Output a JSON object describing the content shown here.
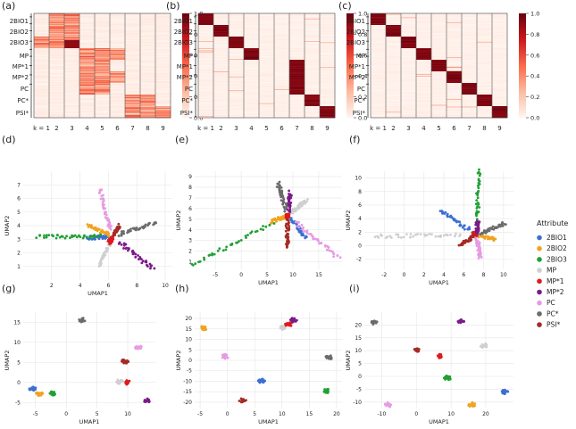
{
  "chart_data": {
    "heatmaps": [
      {
        "panel_label": "(a)",
        "type": "heatmap",
        "rows": [
          "2BIO1",
          "2BIO2",
          "2BIO3",
          "MP",
          "MP*1",
          "MP*2",
          "PC",
          "PC*",
          "PSI*"
        ],
        "cols": [
          "k = 1",
          "2",
          "3",
          "4",
          "5",
          "6",
          "7",
          "8",
          "9"
        ],
        "colorbar_ticks": [
          "0.0",
          "0.2",
          "0.4",
          "0.6",
          "0.8",
          "1.0"
        ],
        "mode": "soft"
      },
      {
        "panel_label": "(b)",
        "type": "heatmap",
        "rows": [
          "2BIO1",
          "2BIO2",
          "2BIO3",
          "MP",
          "MP*1",
          "MP*2",
          "PC",
          "PC*",
          "PSI*"
        ],
        "cols": [
          "k = 1",
          "2",
          "3",
          "4",
          "5",
          "6",
          "7",
          "8",
          "9"
        ],
        "colorbar_ticks": [
          "0.0",
          "0.2",
          "0.4",
          "0.6",
          "0.8",
          "1.0"
        ],
        "mode": "hard",
        "col_map": [
          0,
          1,
          2,
          3,
          6,
          6,
          6,
          7,
          8
        ]
      },
      {
        "panel_label": "(c)",
        "type": "heatmap",
        "rows": [
          "2BIO1",
          "2BIO2",
          "2BIO3",
          "MP",
          "MP*1",
          "MP*2",
          "PC",
          "PC*",
          "PSI*"
        ],
        "cols": [
          "k = 1",
          "2",
          "3",
          "4",
          "5",
          "6",
          "7",
          "8",
          "9"
        ],
        "colorbar_ticks": [
          "0.0",
          "0.2",
          "0.4",
          "0.6",
          "0.8",
          "1.0"
        ],
        "mode": "hard",
        "col_map": [
          0,
          1,
          2,
          3,
          4,
          5,
          6,
          7,
          8
        ]
      }
    ],
    "scatters": [
      {
        "panel_label": "(d)",
        "type": "scatter",
        "xlabel": "UMAP1",
        "ylabel": "UMAP2",
        "xlim": [
          0,
          10.5
        ],
        "ylim": [
          0,
          8
        ],
        "xticks": [
          2,
          4,
          6,
          8,
          10
        ],
        "yticks": [
          1,
          2,
          3,
          4,
          5,
          6,
          7
        ],
        "shape": "star",
        "cx": 6.3,
        "cy": 3.2,
        "clusters": [
          {
            "attr": "2BIO1",
            "x": 4.7,
            "y": 3.1
          },
          {
            "attr": "2BIO2",
            "x": 4.8,
            "y": 3.9
          },
          {
            "attr": "2BIO3",
            "x": 1.6,
            "y": 3.2
          },
          {
            "attr": "MP",
            "x": 5.5,
            "y": 1.3
          },
          {
            "attr": "MP*1",
            "x": 6.1,
            "y": 2.8
          },
          {
            "attr": "MP*2",
            "x": 8.8,
            "y": 1.1
          },
          {
            "attr": "PC",
            "x": 5.5,
            "y": 6.2
          },
          {
            "attr": "PC*",
            "x": 9.0,
            "y": 4.1
          },
          {
            "attr": "PSI*",
            "x": 6.7,
            "y": 3.9
          }
        ]
      },
      {
        "panel_label": "(e)",
        "type": "scatter",
        "xlabel": "UMAP1",
        "ylabel": "UMAP2",
        "xlim": [
          -9,
          19.5
        ],
        "ylim": [
          0.3,
          9.5
        ],
        "xticks": [
          -5,
          0,
          5,
          10,
          15
        ],
        "yticks": [
          1,
          2,
          3,
          4,
          5,
          6,
          7,
          8,
          9
        ],
        "shape": "star",
        "cx": 9,
        "cy": 5.4,
        "clusters": [
          {
            "attr": "2BIO1",
            "x": 12.1,
            "y": 3.5
          },
          {
            "attr": "2BIO2",
            "x": 6.2,
            "y": 4.8
          },
          {
            "attr": "2BIO3",
            "x": -7.5,
            "y": 1.2
          },
          {
            "attr": "MP",
            "x": 12.2,
            "y": 6.6
          },
          {
            "attr": "MP*1",
            "x": 8.9,
            "y": 5.3
          },
          {
            "attr": "MP*2",
            "x": 9.4,
            "y": 7.3
          },
          {
            "attr": "PC",
            "x": 17.8,
            "y": 1.8
          },
          {
            "attr": "PC*",
            "x": 7.3,
            "y": 8.1
          },
          {
            "attr": "PSI*",
            "x": 8.9,
            "y": 2.7
          }
        ]
      },
      {
        "panel_label": "(f)",
        "type": "scatter",
        "xlabel": "UMAP1",
        "ylabel": "UMAP2",
        "xlim": [
          -4,
          11
        ],
        "ylim": [
          -3.5,
          11
        ],
        "xticks": [
          -2,
          0,
          2,
          4,
          6,
          8,
          10
        ],
        "yticks": [
          -2,
          0,
          2,
          4,
          6,
          8,
          10
        ],
        "shape": "star",
        "cx": 7.3,
        "cy": 1.6,
        "clusters": [
          {
            "attr": "2BIO1",
            "x": 4.1,
            "y": 4.8
          },
          {
            "attr": "2BIO2",
            "x": 8.9,
            "y": 1.0
          },
          {
            "attr": "2BIO3",
            "x": 7.5,
            "y": 10.1
          },
          {
            "attr": "MP",
            "x": -1.9,
            "y": 1.4
          },
          {
            "attr": "MP*1",
            "x": 7.0,
            "y": 1.8
          },
          {
            "attr": "MP*2",
            "x": 7.4,
            "y": 3.3
          },
          {
            "attr": "PC",
            "x": 7.6,
            "y": -1.3
          },
          {
            "attr": "PC*",
            "x": 9.8,
            "y": 3.1
          },
          {
            "attr": "PSI*",
            "x": 5.8,
            "y": 0.4
          }
        ]
      },
      {
        "panel_label": "(g)",
        "type": "scatter",
        "xlabel": "UMAP1",
        "ylabel": "UMAP2",
        "xlim": [
          -7,
          14.5
        ],
        "ylim": [
          -6.5,
          17.5
        ],
        "xticks": [
          -5,
          0,
          5,
          10
        ],
        "yticks": [
          -5,
          0,
          5,
          10,
          15
        ],
        "shape": "blob",
        "clusters": [
          {
            "attr": "2BIO1",
            "x": -5.5,
            "y": -1.5
          },
          {
            "attr": "2BIO2",
            "x": -4.4,
            "y": -2.8
          },
          {
            "attr": "2BIO3",
            "x": -2.3,
            "y": -2.8
          },
          {
            "attr": "MP",
            "x": 8.7,
            "y": 0.2
          },
          {
            "attr": "MP*1",
            "x": 9.9,
            "y": 0.0
          },
          {
            "attr": "MP*2",
            "x": 13.2,
            "y": -4.6
          },
          {
            "attr": "PC",
            "x": 11.8,
            "y": 8.6
          },
          {
            "attr": "PC*",
            "x": 2.6,
            "y": 15.6
          },
          {
            "attr": "PSI*",
            "x": 9.6,
            "y": 5.3
          }
        ]
      },
      {
        "panel_label": "(h)",
        "type": "scatter",
        "xlabel": "UMAP1",
        "ylabel": "UMAP2",
        "xlim": [
          -6,
          21
        ],
        "ylim": [
          -23,
          23
        ],
        "xticks": [
          -5,
          0,
          5,
          10,
          15,
          20
        ],
        "yticks": [
          -20,
          -15,
          -10,
          -5,
          0,
          5,
          10,
          15,
          20
        ],
        "shape": "blob",
        "clusters": [
          {
            "attr": "2BIO1",
            "x": 6.3,
            "y": -10
          },
          {
            "attr": "2BIO2",
            "x": -4.3,
            "y": 15.5
          },
          {
            "attr": "2BIO3",
            "x": 18.3,
            "y": -14.6
          },
          {
            "attr": "MP",
            "x": 10.1,
            "y": 15.6
          },
          {
            "attr": "MP*1",
            "x": 11.2,
            "y": 17.2
          },
          {
            "attr": "MP*2",
            "x": 12.2,
            "y": 19.3
          },
          {
            "attr": "PC",
            "x": -0.4,
            "y": 1.9
          },
          {
            "attr": "PC*",
            "x": 18.6,
            "y": 1.5
          },
          {
            "attr": "PSI*",
            "x": 2.8,
            "y": -19.2
          }
        ]
      },
      {
        "panel_label": "(i)",
        "type": "scatter",
        "xlabel": "UMAP1",
        "ylabel": "UMAP2",
        "xlim": [
          -15,
          28
        ],
        "ylim": [
          -12.5,
          25
        ],
        "xticks": [
          -10,
          0,
          10,
          20
        ],
        "yticks": [
          -10,
          -5,
          0,
          5,
          10,
          15,
          20
        ],
        "shape": "blob",
        "clusters": [
          {
            "attr": "2BIO1",
            "x": 25.5,
            "y": -6
          },
          {
            "attr": "2BIO2",
            "x": 16,
            "y": -11
          },
          {
            "attr": "2BIO3",
            "x": 9,
            "y": -0.5
          },
          {
            "attr": "MP",
            "x": 19.5,
            "y": 12
          },
          {
            "attr": "MP*1",
            "x": 7,
            "y": 7.8
          },
          {
            "attr": "MP*2",
            "x": 13,
            "y": 21.5
          },
          {
            "attr": "PC",
            "x": -8,
            "y": -11
          },
          {
            "attr": "PC*",
            "x": -12,
            "y": 21
          },
          {
            "attr": "PSI*",
            "x": 0,
            "y": 10.2
          }
        ]
      }
    ],
    "legend": {
      "title": "Attribute",
      "items": [
        "2BIO1",
        "2BIO2",
        "2BIO3",
        "MP",
        "MP*1",
        "MP*2",
        "PC",
        "PC*",
        "PSI*"
      ]
    }
  },
  "colors": {
    "2BIO1": "#3d6fd1",
    "2BIO2": "#f0a31d",
    "2BIO3": "#21a035",
    "MP": "#cfcfcf",
    "MP*1": "#e0191e",
    "MP*2": "#7a1b89",
    "PC": "#e69be3",
    "PC*": "#6b6b6b",
    "PSI*": "#a52b24"
  }
}
